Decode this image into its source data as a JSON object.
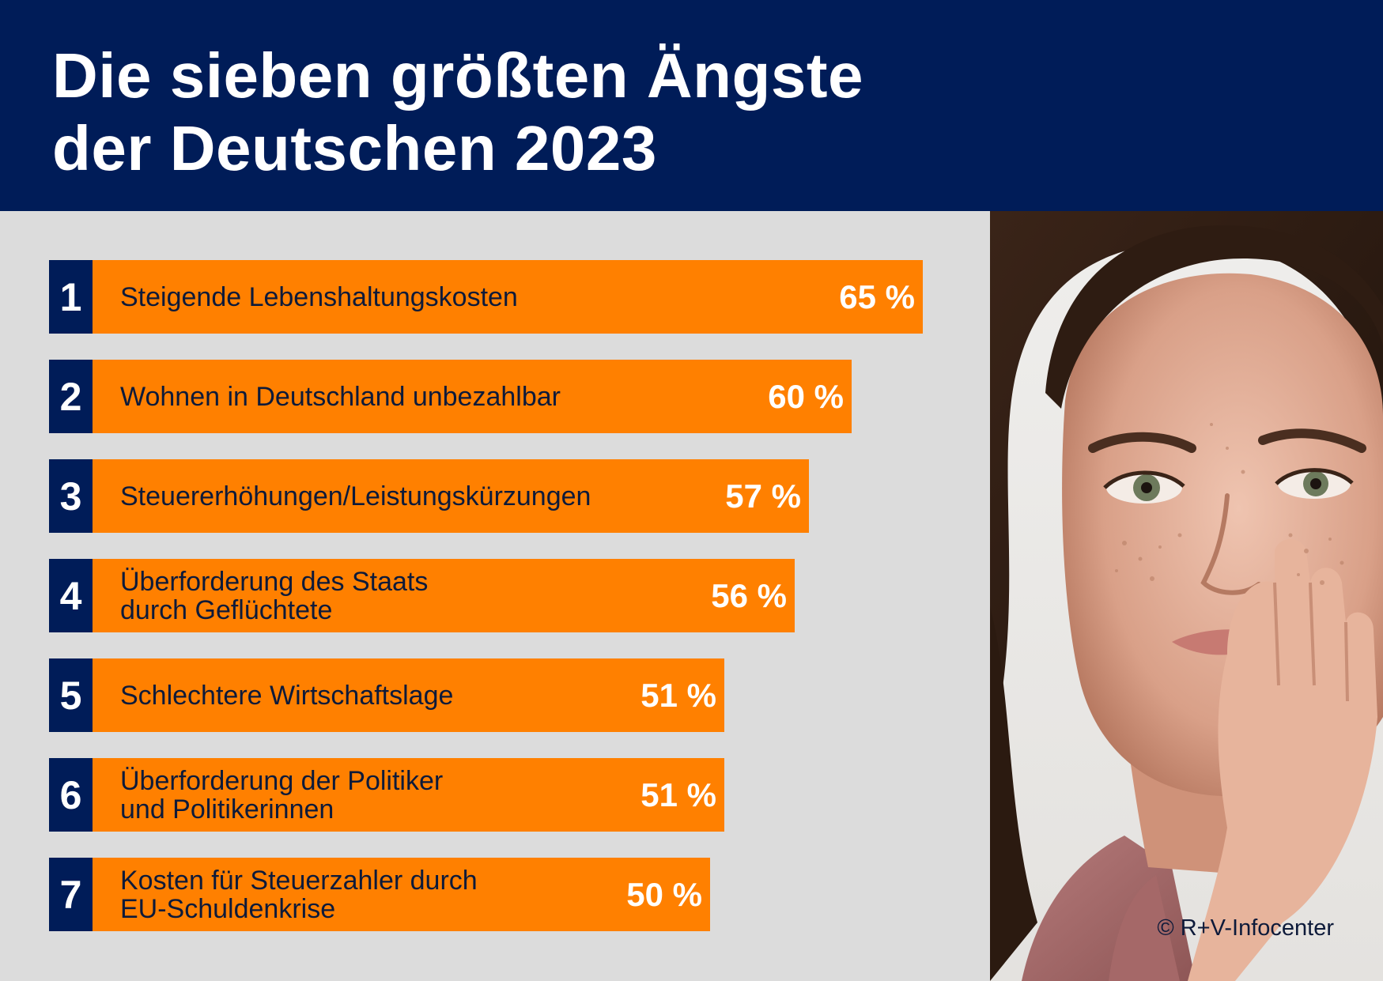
{
  "header": {
    "title": "Die sieben größten Ängste\nder Deutschen 2023"
  },
  "chart_data": {
    "type": "bar",
    "orientation": "horizontal",
    "ranks": [
      "1",
      "2",
      "3",
      "4",
      "5",
      "6",
      "7"
    ],
    "categories": [
      "Steigende Lebenshaltungskosten",
      "Wohnen in Deutschland unbezahlbar",
      "Steuererhöhungen/Leistungskürzungen",
      "Überforderung des Staats\ndurch Geflüchtete",
      "Schlechtere Wirtschaftslage",
      "Überforderung der Politiker\nund Politikerinnen",
      "Kosten für Steuerzahler durch\nEU-Schuldenkrise"
    ],
    "values": [
      65,
      60,
      57,
      56,
      51,
      51,
      50
    ],
    "value_labels": [
      "65 %",
      "60 %",
      "57 %",
      "56 %",
      "51 %",
      "51 %",
      "50 %"
    ],
    "unit": "%",
    "title": "Die sieben größten Ängste der Deutschen 2023",
    "xlabel": "",
    "ylabel": "",
    "legend": "none",
    "grid": false,
    "colors": {
      "bar": "#ff8000",
      "rank": "#001c58",
      "header": "#001c58",
      "background": "#dcdcdc"
    }
  },
  "photo": {
    "icon": "portrait-photo-icon",
    "copyright": "© R+V-Infocenter"
  }
}
